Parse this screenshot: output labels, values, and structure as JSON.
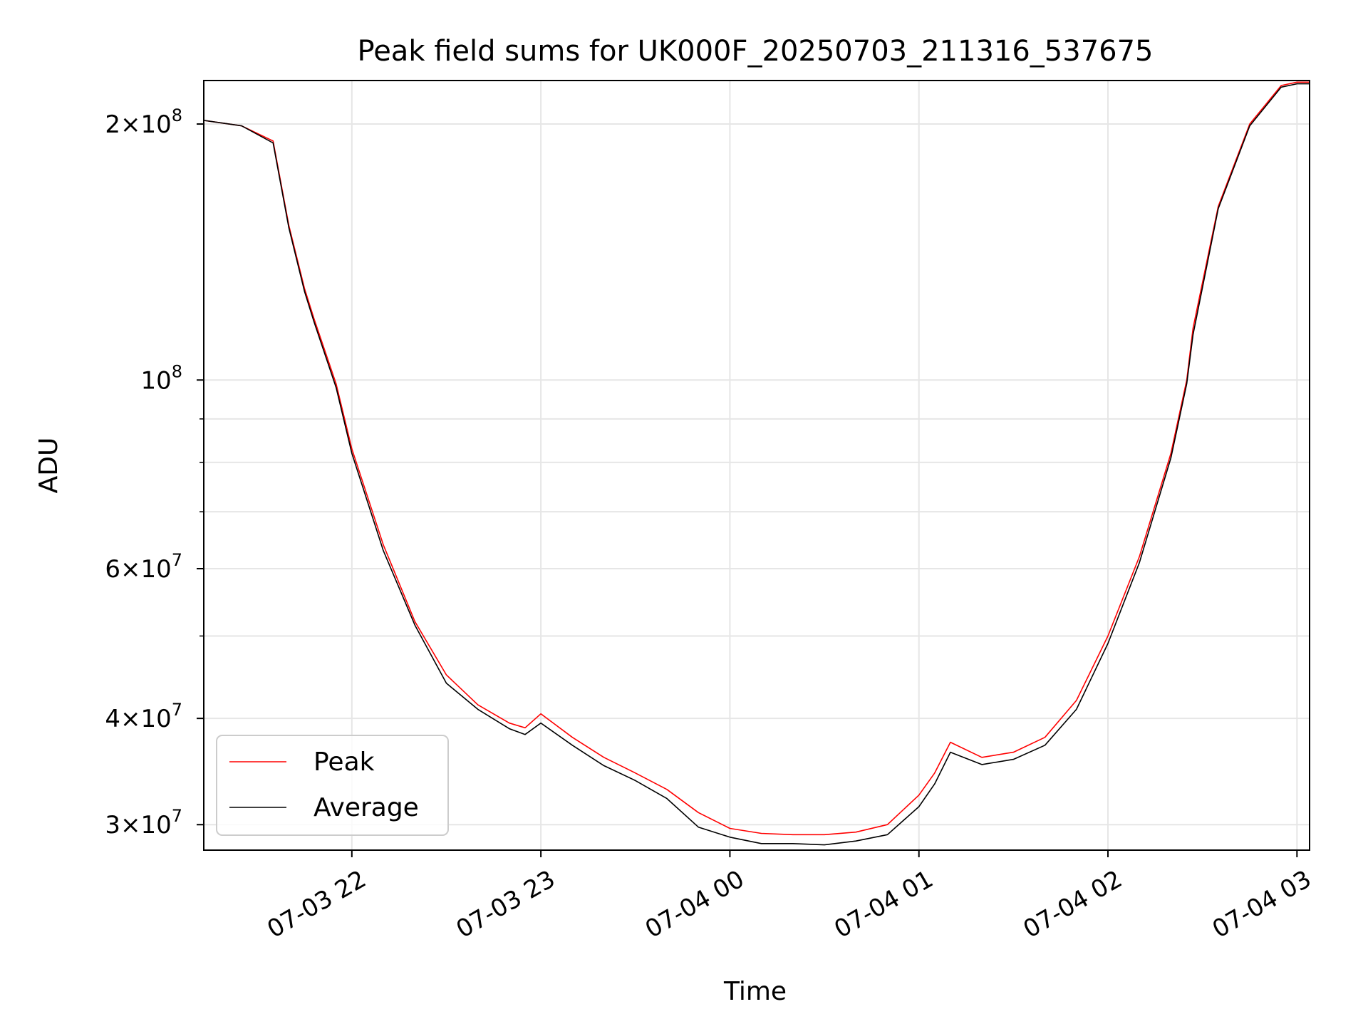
{
  "chart_data": {
    "type": "line",
    "title": "Peak field sums for UK000F_20250703_211316_537675",
    "xlabel": "Time",
    "ylabel": "ADU",
    "yscale": "log",
    "xlim": [
      "2025-07-03 21:13",
      "2025-07-04 03:04"
    ],
    "ylim": [
      28000000,
      225000000
    ],
    "grid": true,
    "legend_position": "lower-left",
    "x_ticks": [
      {
        "value": "2025-07-03 22:00",
        "label": "07-03 22"
      },
      {
        "value": "2025-07-03 23:00",
        "label": "07-03 23"
      },
      {
        "value": "2025-07-04 00:00",
        "label": "07-04 00"
      },
      {
        "value": "2025-07-04 01:00",
        "label": "07-04 01"
      },
      {
        "value": "2025-07-04 02:00",
        "label": "07-04 02"
      },
      {
        "value": "2025-07-04 03:00",
        "label": "07-04 03"
      }
    ],
    "y_major_ticks": [
      {
        "value": 30000000,
        "mantissa": "3",
        "exp": "7"
      },
      {
        "value": 40000000,
        "mantissa": "4",
        "exp": "7"
      },
      {
        "value": 60000000,
        "mantissa": "6",
        "exp": "7"
      },
      {
        "value": 100000000,
        "mantissa": "",
        "exp": "8"
      },
      {
        "value": 200000000,
        "mantissa": "2",
        "exp": "8"
      }
    ],
    "y_minor_ticks": [
      50000000,
      70000000,
      80000000,
      90000000
    ],
    "x": [
      "2025-07-03 21:13",
      "2025-07-03 21:25",
      "2025-07-03 21:35",
      "2025-07-03 21:40",
      "2025-07-03 21:45",
      "2025-07-03 21:48",
      "2025-07-03 21:55",
      "2025-07-03 22:00",
      "2025-07-03 22:10",
      "2025-07-03 22:20",
      "2025-07-03 22:30",
      "2025-07-03 22:40",
      "2025-07-03 22:50",
      "2025-07-03 22:55",
      "2025-07-03 23:00",
      "2025-07-03 23:10",
      "2025-07-03 23:20",
      "2025-07-03 23:30",
      "2025-07-03 23:40",
      "2025-07-03 23:50",
      "2025-07-04 00:00",
      "2025-07-04 00:10",
      "2025-07-04 00:20",
      "2025-07-04 00:30",
      "2025-07-04 00:40",
      "2025-07-04 00:50",
      "2025-07-04 01:00",
      "2025-07-04 01:05",
      "2025-07-04 01:10",
      "2025-07-04 01:20",
      "2025-07-04 01:30",
      "2025-07-04 01:40",
      "2025-07-04 01:50",
      "2025-07-04 02:00",
      "2025-07-04 02:10",
      "2025-07-04 02:20",
      "2025-07-04 02:25",
      "2025-07-04 02:27",
      "2025-07-04 02:35",
      "2025-07-04 02:45",
      "2025-07-04 02:55",
      "2025-07-04 03:00",
      "2025-07-04 03:04"
    ],
    "series": [
      {
        "name": "Peak",
        "color": "#ff0000",
        "values": [
          202000000,
          199000000,
          191000000,
          152000000,
          128000000,
          118000000,
          99000000,
          83000000,
          64000000,
          52000000,
          45000000,
          41500000,
          39500000,
          39000000,
          40500000,
          38000000,
          36000000,
          34500000,
          33000000,
          31000000,
          29700000,
          29300000,
          29200000,
          29200000,
          29400000,
          30000000,
          32500000,
          34500000,
          37500000,
          36000000,
          36500000,
          38000000,
          42000000,
          50000000,
          62000000,
          82000000,
          100000000,
          115000000,
          160000000,
          200000000,
          222000000,
          224000000,
          224000000
        ]
      },
      {
        "name": "Average",
        "color": "#000000",
        "values": [
          202000000,
          199000000,
          190000000,
          151000000,
          127000000,
          117000000,
          98000000,
          82000000,
          63000000,
          51500000,
          44000000,
          41000000,
          38900000,
          38300000,
          39500000,
          37200000,
          35200000,
          33800000,
          32200000,
          29800000,
          29000000,
          28500000,
          28500000,
          28400000,
          28700000,
          29200000,
          31500000,
          33500000,
          36500000,
          35300000,
          35800000,
          37200000,
          41000000,
          49000000,
          61000000,
          81000000,
          99000000,
          113000000,
          159000000,
          199000000,
          221000000,
          223000000,
          223000000
        ]
      }
    ]
  }
}
